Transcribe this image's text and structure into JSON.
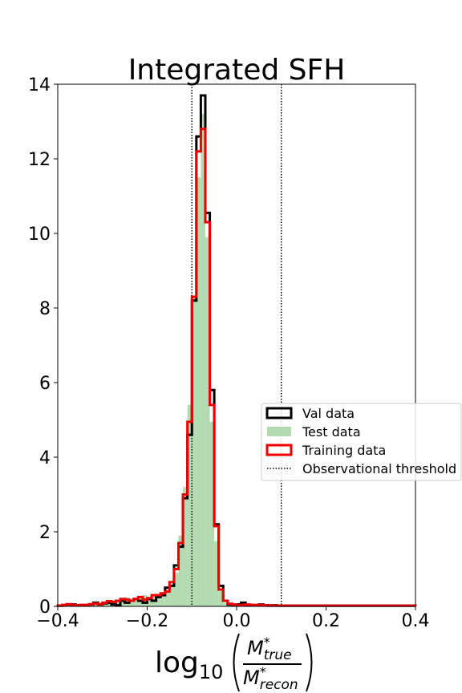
{
  "chart_data": {
    "type": "histogram",
    "title": "Integrated SFH",
    "xlabel": {
      "prefix": "log",
      "subscript": "10",
      "numerator": "M",
      "numerator_sup": "*",
      "numerator_sub": "true",
      "denominator": "M",
      "denominator_sup": "*",
      "denominator_sub": "recon"
    },
    "xlim": [
      -0.4,
      0.4
    ],
    "ylim": [
      0,
      14
    ],
    "xticks": [
      {
        "value": -0.4,
        "label": "−0.4"
      },
      {
        "value": -0.2,
        "label": "−0.2"
      },
      {
        "value": 0.0,
        "label": "0.0"
      },
      {
        "value": 0.2,
        "label": "0.2"
      },
      {
        "value": 0.4,
        "label": "0.4"
      }
    ],
    "yticks": [
      {
        "value": 0,
        "label": "0"
      },
      {
        "value": 2,
        "label": "2"
      },
      {
        "value": 4,
        "label": "4"
      },
      {
        "value": 6,
        "label": "6"
      },
      {
        "value": 8,
        "label": "8"
      },
      {
        "value": 10,
        "label": "10"
      },
      {
        "value": 12,
        "label": "12"
      },
      {
        "value": 14,
        "label": "14"
      }
    ],
    "grid": false,
    "legend_position": "center-right",
    "thresholds": [
      -0.1,
      0.1
    ],
    "bin_start": -0.4,
    "bin_width": 0.01,
    "series": [
      {
        "name": "Val data",
        "style": "step",
        "color": "#000000",
        "values": [
          0.02,
          0.03,
          0.05,
          0.05,
          0.03,
          0.03,
          0.03,
          0.05,
          0.1,
          0.05,
          0.08,
          0.1,
          0.05,
          0.03,
          0.15,
          0.1,
          0.15,
          0.2,
          0.15,
          0.1,
          0.2,
          0.15,
          0.25,
          0.3,
          0.5,
          0.55,
          1.1,
          1.6,
          2.9,
          4.6,
          8.2,
          12.6,
          13.7,
          10.55,
          5.8,
          2.2,
          0.55,
          0.15,
          0.05,
          0.03,
          0.05,
          0.1,
          0.03,
          0.03,
          0.03,
          0.05,
          0.03,
          0.02,
          0.03,
          0.02,
          0.02,
          0.02,
          0.02,
          0.02,
          0.02,
          0.02,
          0.02,
          0.02,
          0.02,
          0.02,
          0.02,
          0.02,
          0.02,
          0.02,
          0.02,
          0.02,
          0.02,
          0.02,
          0.02,
          0.02,
          0.02,
          0.02,
          0.02,
          0.02,
          0.02,
          0.02,
          0.02,
          0.02,
          0.02,
          0.02
        ]
      },
      {
        "name": "Test data",
        "style": "filled",
        "color": "#b3dab0",
        "values": [
          0.02,
          0.03,
          0.04,
          0.03,
          0.03,
          0.04,
          0.03,
          0.05,
          0.06,
          0.06,
          0.08,
          0.1,
          0.12,
          0.15,
          0.18,
          0.25,
          0.2,
          0.18,
          0.22,
          0.3,
          0.25,
          0.28,
          0.3,
          0.35,
          0.4,
          0.55,
          0.9,
          1.9,
          3.2,
          5.4,
          8.3,
          11.5,
          13.2,
          9.9,
          4.95,
          1.75,
          0.4,
          0.1,
          0.05,
          0.03,
          0.03,
          0.03,
          0.02,
          0.03,
          0.03,
          0.02,
          0.02,
          0.02,
          0.02,
          0.02,
          0.02,
          0.02,
          0.02,
          0.02,
          0.02,
          0.02,
          0.02,
          0.02,
          0.02,
          0.02,
          0.02,
          0.02,
          0.02,
          0.02,
          0.02,
          0.02,
          0.02,
          0.02,
          0.02,
          0.02,
          0.02,
          0.02,
          0.02,
          0.02,
          0.02,
          0.02,
          0.02,
          0.02,
          0.02,
          0.02
        ]
      },
      {
        "name": "Training data",
        "style": "step",
        "color": "#ee0000",
        "values": [
          0.02,
          0.04,
          0.06,
          0.04,
          0.03,
          0.04,
          0.04,
          0.06,
          0.08,
          0.06,
          0.1,
          0.14,
          0.12,
          0.15,
          0.2,
          0.18,
          0.15,
          0.2,
          0.25,
          0.18,
          0.22,
          0.3,
          0.3,
          0.35,
          0.4,
          0.65,
          1.0,
          1.7,
          3.0,
          4.95,
          8.3,
          12.2,
          12.8,
          10.3,
          5.4,
          2.15,
          0.45,
          0.15,
          0.07,
          0.05,
          0.03,
          0.04,
          0.05,
          0.04,
          0.04,
          0.04,
          0.03,
          0.03,
          0.02,
          0.02,
          0.02,
          0.02,
          0.02,
          0.02,
          0.02,
          0.02,
          0.02,
          0.02,
          0.02,
          0.02,
          0.02,
          0.02,
          0.02,
          0.02,
          0.02,
          0.02,
          0.02,
          0.02,
          0.02,
          0.02,
          0.02,
          0.02,
          0.02,
          0.02,
          0.02,
          0.02,
          0.02,
          0.02,
          0.02,
          0.02
        ]
      },
      {
        "name": "Observational threshold",
        "style": "dotted",
        "color": "#000000"
      }
    ]
  }
}
